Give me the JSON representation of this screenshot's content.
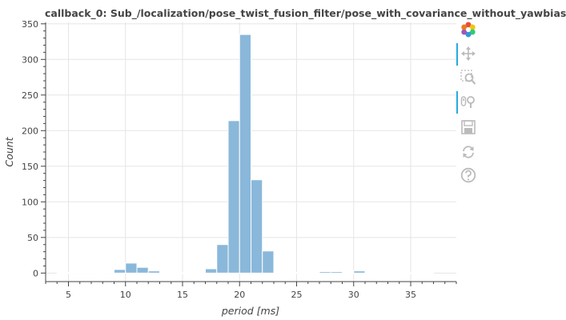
{
  "chart_data": {
    "type": "bar",
    "title": "callback_0: Sub_/localization/pose_twist_fusion_filter/pose_with_covariance_without_yawbias",
    "xlabel": "period [ms]",
    "ylabel": "Count",
    "xlim": [
      3,
      39
    ],
    "ylim": [
      -12,
      352
    ],
    "xticks": [
      5,
      10,
      15,
      20,
      25,
      30,
      35
    ],
    "yticks": [
      0,
      50,
      100,
      150,
      200,
      250,
      300,
      350
    ],
    "bin_width": 1,
    "bars": [
      {
        "x0": 4,
        "x1": 5,
        "value": 0
      },
      {
        "x0": 5,
        "x1": 6,
        "value": 1
      },
      {
        "x0": 6,
        "x1": 7,
        "value": 1
      },
      {
        "x0": 7,
        "x1": 8,
        "value": 1
      },
      {
        "x0": 8,
        "x1": 9,
        "value": 1
      },
      {
        "x0": 9,
        "x1": 10,
        "value": 5
      },
      {
        "x0": 10,
        "x1": 11,
        "value": 14
      },
      {
        "x0": 11,
        "x1": 12,
        "value": 8
      },
      {
        "x0": 12,
        "x1": 13,
        "value": 3
      },
      {
        "x0": 13,
        "x1": 14,
        "value": 1
      },
      {
        "x0": 14,
        "x1": 15,
        "value": 0
      },
      {
        "x0": 15,
        "x1": 16,
        "value": 0
      },
      {
        "x0": 16,
        "x1": 17,
        "value": 1
      },
      {
        "x0": 17,
        "x1": 18,
        "value": 6
      },
      {
        "x0": 18,
        "x1": 19,
        "value": 40
      },
      {
        "x0": 19,
        "x1": 20,
        "value": 214
      },
      {
        "x0": 20,
        "x1": 21,
        "value": 335
      },
      {
        "x0": 21,
        "x1": 22,
        "value": 131
      },
      {
        "x0": 22,
        "x1": 23,
        "value": 31
      },
      {
        "x0": 23,
        "x1": 24,
        "value": 1
      },
      {
        "x0": 24,
        "x1": 25,
        "value": 0
      },
      {
        "x0": 25,
        "x1": 26,
        "value": 1
      },
      {
        "x0": 26,
        "x1": 27,
        "value": 0
      },
      {
        "x0": 27,
        "x1": 28,
        "value": 2
      },
      {
        "x0": 28,
        "x1": 29,
        "value": 2
      },
      {
        "x0": 29,
        "x1": 30,
        "value": 0
      },
      {
        "x0": 30,
        "x1": 31,
        "value": 3
      },
      {
        "x0": 31,
        "x1": 32,
        "value": 0
      },
      {
        "x0": 32,
        "x1": 33,
        "value": 1
      },
      {
        "x0": 33,
        "x1": 34,
        "value": 1
      },
      {
        "x0": 34,
        "x1": 35,
        "value": 0
      },
      {
        "x0": 35,
        "x1": 36,
        "value": 0
      },
      {
        "x0": 36,
        "x1": 37,
        "value": 0
      }
    ],
    "grid": true,
    "colors": {
      "bar_fill": "#8ab8da",
      "bar_stroke": "#ffffff",
      "grid": "#e5e5e5",
      "axis": "#444444"
    }
  },
  "toolbar": {
    "tools": [
      {
        "name": "bokeh-logo",
        "icon": "bokeh-logo-icon",
        "active": false
      },
      {
        "name": "pan",
        "icon": "pan-move-icon",
        "active": true
      },
      {
        "name": "box-zoom",
        "icon": "box-zoom-icon",
        "active": false
      },
      {
        "name": "wheel-zoom",
        "icon": "wheel-zoom-icon",
        "active": true
      },
      {
        "name": "save",
        "icon": "save-icon",
        "active": false
      },
      {
        "name": "reset",
        "icon": "reset-icon",
        "active": false
      },
      {
        "name": "help",
        "icon": "help-icon",
        "active": false
      }
    ],
    "active_color": "#26aae1",
    "icon_color": "#bbbbbb"
  }
}
